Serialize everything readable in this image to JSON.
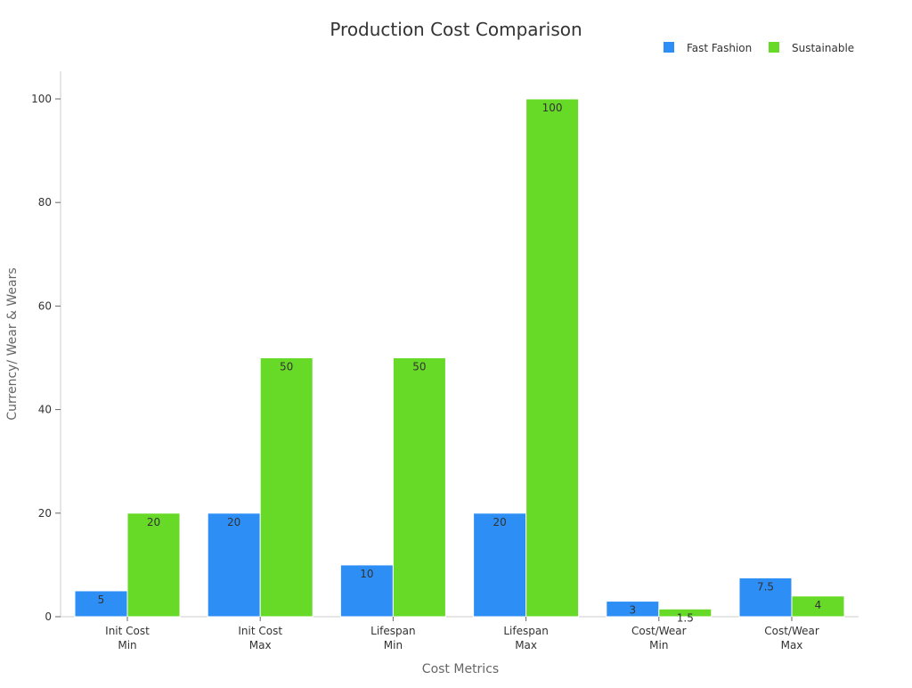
{
  "chart_data": {
    "type": "bar",
    "title": "Production Cost Comparison",
    "xlabel": "Cost Metrics",
    "ylabel": "Currency/ Wear & Wears",
    "categories": [
      [
        "Init Cost",
        "Min"
      ],
      [
        "Init Cost",
        "Max"
      ],
      [
        "Lifespan",
        "Min"
      ],
      [
        "Lifespan",
        "Max"
      ],
      [
        "Cost/Wear",
        "Min"
      ],
      [
        "Cost/Wear",
        "Max"
      ]
    ],
    "series": [
      {
        "name": "Fast Fashion",
        "color": "#2d8ef5",
        "values": [
          5,
          20,
          10,
          20,
          3,
          7.5
        ],
        "labels": [
          "5",
          "20",
          "10",
          "20",
          "3",
          "7.5"
        ]
      },
      {
        "name": "Sustainable",
        "color": "#66da26",
        "values": [
          20,
          50,
          50,
          100,
          1.5,
          4
        ],
        "labels": [
          "20",
          "50",
          "50",
          "100",
          "1.5",
          "4"
        ]
      }
    ],
    "ylim": [
      0,
      105
    ],
    "yticks": [
      0,
      20,
      40,
      60,
      80,
      100
    ],
    "legend_position": "top-right",
    "grid": false
  }
}
